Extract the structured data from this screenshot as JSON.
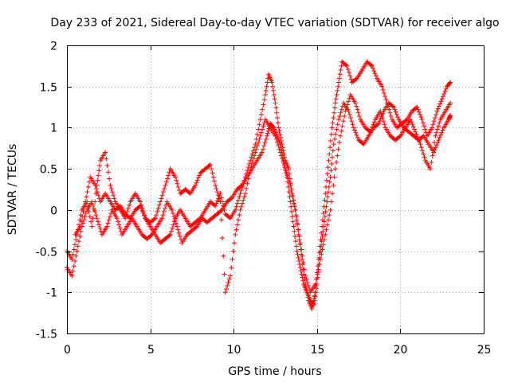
{
  "chart_data": {
    "type": "scatter",
    "title": "Day 233 of 2021, Sidereal Day-to-day VTEC variation (SDTVAR) for receiver algo",
    "xlabel": "GPS time / hours",
    "ylabel": "SDTVAR / TECUs",
    "xlim": [
      0,
      25
    ],
    "ylim": [
      -1.5,
      2
    ],
    "xticks": [
      "0",
      "5",
      "10",
      "15",
      "20",
      "25"
    ],
    "yticks": [
      "-1.5",
      "-1",
      "-0.5",
      "0",
      "0.5",
      "1",
      "1.5",
      "2"
    ],
    "grid": true,
    "marker": "+",
    "color": "#ff0000",
    "series": [
      {
        "name": "trace-1",
        "x": [
          0.0,
          0.3,
          0.6,
          0.9,
          1.2,
          1.5,
          1.8,
          2.0,
          2.3,
          2.6,
          2.9,
          3.2,
          3.5,
          3.8,
          4.1,
          4.4,
          4.7,
          5.0,
          5.3,
          5.6,
          5.9,
          6.2,
          6.5,
          6.8,
          7.1,
          7.4,
          7.7,
          8.0,
          8.3,
          8.6,
          8.9,
          9.2,
          9.5,
          9.8,
          10.1,
          10.4,
          10.7,
          11.0,
          11.3,
          11.6,
          11.9,
          12.1,
          12.3,
          12.5,
          12.7,
          12.9,
          13.1,
          13.3,
          13.5,
          13.7,
          13.9,
          14.1,
          14.3,
          14.5,
          14.7,
          14.9,
          15.1,
          15.3,
          15.5,
          15.7,
          15.9,
          16.1,
          16.3,
          16.5,
          16.8,
          17.1,
          17.4,
          17.7,
          18.0,
          18.3,
          18.6,
          18.9,
          19.2,
          19.5,
          19.8,
          20.1,
          20.4,
          20.7,
          21.0,
          21.3,
          21.6,
          21.9,
          22.2,
          22.5,
          22.8,
          23.0
        ],
        "y": [
          -0.5,
          -0.6,
          -0.3,
          0.0,
          0.1,
          -0.2,
          0.3,
          0.6,
          0.7,
          0.3,
          0.1,
          0.0,
          -0.1,
          0.1,
          0.2,
          0.1,
          -0.1,
          -0.2,
          -0.3,
          -0.4,
          -0.35,
          -0.3,
          -0.1,
          0.0,
          -0.1,
          -0.2,
          -0.15,
          -0.1,
          0.0,
          0.1,
          0.05,
          0.2,
          -0.05,
          -0.1,
          0.0,
          0.2,
          0.4,
          0.6,
          0.8,
          1.1,
          1.4,
          1.65,
          1.55,
          1.3,
          1.0,
          0.8,
          0.6,
          0.5,
          0.2,
          0.0,
          -0.3,
          -0.6,
          -0.9,
          -1.1,
          -1.2,
          -1.0,
          -0.6,
          -0.2,
          0.2,
          0.6,
          1.0,
          1.3,
          1.55,
          1.8,
          1.75,
          1.55,
          1.6,
          1.7,
          1.8,
          1.75,
          1.6,
          1.5,
          1.3,
          1.1,
          1.0,
          1.05,
          1.1,
          1.2,
          1.25,
          1.1,
          0.9,
          1.0,
          1.2,
          1.35,
          1.5,
          1.55
        ]
      },
      {
        "name": "trace-2",
        "x": [
          0.0,
          0.3,
          0.6,
          0.9,
          1.2,
          1.5,
          1.8,
          2.1,
          2.4,
          2.7,
          3.0,
          3.3,
          3.6,
          3.9,
          4.2,
          4.5,
          4.8,
          5.1,
          5.4,
          5.7,
          6.0,
          6.3,
          6.6,
          6.9,
          7.2,
          7.5,
          7.8,
          8.1,
          8.4,
          8.7,
          9.0,
          9.3,
          9.6,
          9.9,
          10.2,
          10.5,
          10.8,
          11.1,
          11.4,
          11.7,
          12.0,
          12.2,
          12.4,
          12.6,
          12.8,
          13.0,
          13.2,
          13.4,
          13.6,
          13.8,
          14.0,
          14.2,
          14.4,
          14.6,
          14.8,
          15.0,
          15.2,
          15.4,
          15.6,
          15.8,
          16.0,
          16.3,
          16.6,
          16.9,
          17.2,
          17.5,
          17.8,
          18.1,
          18.4,
          18.7,
          19.0,
          19.3,
          19.6,
          19.9,
          20.2,
          20.5,
          20.8,
          21.1,
          21.4,
          21.7,
          22.0,
          22.3,
          22.6,
          22.9,
          23.0
        ],
        "y": [
          -0.7,
          -0.8,
          -0.5,
          -0.2,
          0.0,
          0.1,
          -0.1,
          -0.3,
          -0.2,
          0.0,
          -0.1,
          -0.3,
          -0.2,
          -0.1,
          -0.2,
          -0.3,
          -0.35,
          -0.3,
          -0.2,
          -0.1,
          0.1,
          0.0,
          -0.2,
          -0.4,
          -0.3,
          -0.25,
          -0.2,
          -0.1,
          -0.15,
          -0.1,
          -0.05,
          0.0,
          0.1,
          0.15,
          0.25,
          0.3,
          0.4,
          0.5,
          0.6,
          0.7,
          0.9,
          1.05,
          1.0,
          0.9,
          0.8,
          0.6,
          0.4,
          0.1,
          -0.2,
          -0.5,
          -0.7,
          -0.9,
          -1.0,
          -1.1,
          -1.15,
          -0.9,
          -0.5,
          -0.2,
          0.1,
          0.4,
          0.8,
          1.1,
          1.3,
          1.2,
          1.0,
          0.85,
          0.8,
          0.9,
          1.0,
          1.05,
          1.2,
          1.3,
          1.25,
          1.1,
          1.0,
          0.95,
          0.9,
          0.85,
          0.9,
          0.8,
          0.7,
          0.85,
          1.0,
          1.1,
          1.15
        ]
      },
      {
        "name": "trace-3",
        "x": [
          0.5,
          0.8,
          1.1,
          1.4,
          1.7,
          2.0,
          2.3,
          2.6,
          2.9,
          3.2,
          3.5,
          3.8,
          4.1,
          4.4,
          4.7,
          5.0,
          5.3,
          5.6,
          5.9,
          6.2,
          6.5,
          6.8,
          7.1,
          7.4,
          7.7,
          8.0,
          8.3,
          8.6,
          8.9,
          9.2,
          9.5,
          9.8,
          10.1,
          10.4,
          10.7,
          11.0,
          11.3,
          11.6,
          11.9,
          12.2,
          12.5,
          12.8,
          13.1,
          13.4,
          13.7,
          14.0,
          14.3,
          14.6,
          14.9,
          15.2,
          15.5,
          15.8,
          16.1,
          16.4,
          16.7,
          17.0,
          17.3,
          17.6,
          17.9,
          18.2,
          18.5,
          18.8,
          19.1,
          19.4,
          19.7,
          20.0,
          20.3,
          20.6,
          20.9,
          21.2,
          21.5,
          21.8,
          22.1,
          22.4,
          22.7,
          23.0
        ],
        "y": [
          -0.3,
          -0.2,
          0.1,
          0.4,
          0.3,
          0.1,
          0.2,
          0.1,
          0.0,
          0.05,
          -0.05,
          -0.1,
          0.0,
          0.05,
          -0.1,
          -0.15,
          -0.1,
          0.1,
          0.3,
          0.5,
          0.4,
          0.2,
          0.25,
          0.2,
          0.3,
          0.45,
          0.5,
          0.55,
          0.3,
          0.1,
          -1.0,
          -0.8,
          -0.3,
          0.0,
          0.2,
          0.5,
          0.7,
          0.9,
          1.1,
          1.0,
          0.9,
          0.7,
          0.5,
          0.3,
          0.0,
          -0.4,
          -0.8,
          -1.0,
          -0.9,
          -0.6,
          -0.3,
          0.0,
          0.5,
          0.9,
          1.2,
          1.4,
          1.3,
          1.1,
          1.0,
          0.95,
          1.1,
          1.2,
          1.0,
          0.9,
          0.85,
          0.9,
          1.0,
          1.1,
          0.95,
          0.8,
          0.6,
          0.5,
          0.9,
          1.1,
          1.2,
          1.3
        ]
      }
    ]
  }
}
